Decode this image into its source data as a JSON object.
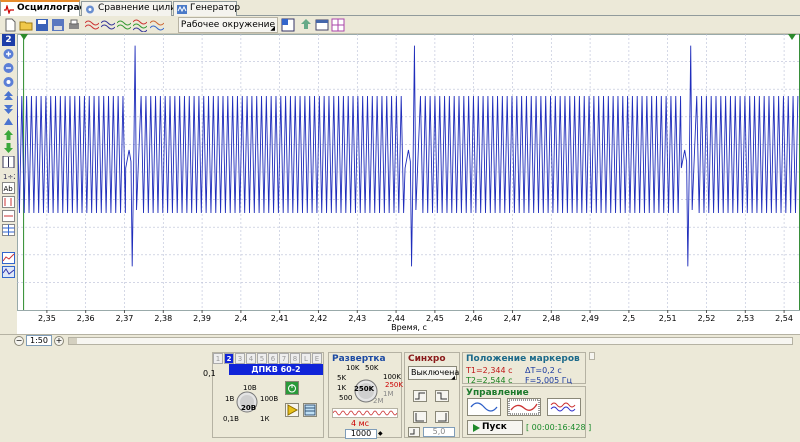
{
  "tabs": [
    {
      "label": "Осциллограф",
      "active": true
    },
    {
      "label": "Сравнение цилиндров",
      "active": false
    },
    {
      "label": "Генератор",
      "active": false
    }
  ],
  "toolbar": {
    "environment_label": "Рабочее окружение"
  },
  "left_panel": {
    "channel_badge": "2"
  },
  "zoom": {
    "value": "1:50"
  },
  "channel": {
    "tabs": [
      "1",
      "2",
      "3",
      "4",
      "5",
      "6",
      "7",
      "8",
      "L",
      "E"
    ],
    "selected": "2",
    "name": "ДПКВ 60-2",
    "scale_labels": [
      "0,1",
      "1В",
      "10В",
      "100В",
      "20В",
      "0,1В",
      "1К"
    ],
    "current": "20В"
  },
  "sweep": {
    "title": "Развертка",
    "labels": [
      "10K",
      "50K",
      "5K",
      "100K",
      "1K",
      "250K",
      "500",
      "1M",
      "2M"
    ],
    "current": "250K",
    "time": "4 мс",
    "points": "1000"
  },
  "sync": {
    "title": "Синхро",
    "mode": "Выключена",
    "level": "5,0"
  },
  "markers": {
    "title": "Положение маркеров",
    "t1": "T1=2,344 с",
    "t2": "T2=2,544 с",
    "dt": "ΔT=0,2 с",
    "f": "F=5,005 Гц"
  },
  "control": {
    "title": "Управление",
    "start_label": "Пуск",
    "timer": "[ 00:00:16:428 ]"
  },
  "chart_data": {
    "type": "line",
    "xlabel": "Время, с",
    "x_ticks": [
      2.35,
      2.36,
      2.37,
      2.38,
      2.39,
      2.4,
      2.41,
      2.42,
      2.43,
      2.44,
      2.45,
      2.46,
      2.47,
      2.48,
      2.49,
      2.5,
      2.51,
      2.52,
      2.53,
      2.54
    ],
    "x_tick_labels": [
      "2,35",
      "2,36",
      "2,37",
      "2,38",
      "2,39",
      "2,4",
      "2,41",
      "2,42",
      "2,43",
      "2,44",
      "2,45",
      "2,46",
      "2,47",
      "2,48",
      "2,49",
      "2,5",
      "2,51",
      "2,52",
      "2,53",
      "2,54"
    ],
    "xlim": [
      2.3423,
      2.5441
    ],
    "ylim": [
      -1,
      1
    ],
    "grid": true,
    "signal": {
      "cycles_per_gap": 58,
      "amplitude": 0.5,
      "gap_times": [
        2.3723,
        2.4443,
        2.5155
      ],
      "spike_high": 0.92,
      "spike_low": -0.92,
      "color": "#1f2dbb"
    },
    "markers": [
      2.344,
      2.544
    ]
  }
}
